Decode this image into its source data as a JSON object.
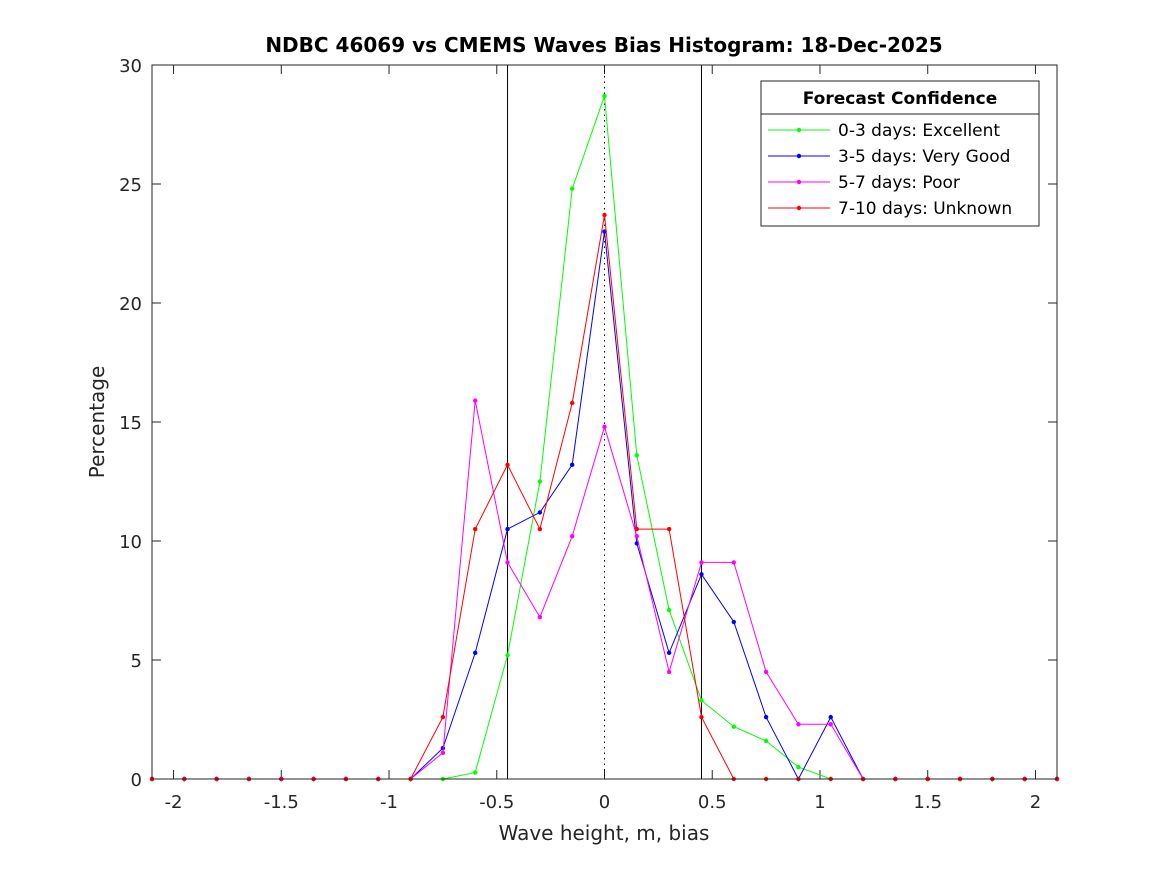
{
  "chart_data": {
    "type": "line",
    "title": "NDBC 46069 vs CMEMS Waves Bias Histogram: 18-Dec-2025",
    "xlabel": "Wave height, m, bias",
    "ylabel": "Percentage",
    "xlim": [
      -2.1,
      2.1
    ],
    "ylim": [
      0,
      30
    ],
    "xticks": [
      -2,
      -1.5,
      -1,
      -0.5,
      0,
      0.5,
      1,
      1.5,
      2
    ],
    "xtick_labels": [
      "-2",
      "-1.5",
      "-1",
      "-0.5",
      "0",
      "0.5",
      "1",
      "1.5",
      "2"
    ],
    "yticks": [
      0,
      5,
      10,
      15,
      20,
      25,
      30
    ],
    "ytick_labels": [
      "0",
      "5",
      "10",
      "15",
      "20",
      "25",
      "30"
    ],
    "grid": false,
    "vertical_lines": [
      {
        "x": -0.45,
        "style": "solid",
        "color": "#000000"
      },
      {
        "x": 0,
        "style": "dotted",
        "color": "#000000"
      },
      {
        "x": 0.45,
        "style": "solid",
        "color": "#000000"
      }
    ],
    "legend": {
      "title": "Forecast Confidence",
      "position": "top-right"
    },
    "x": [
      -2.1,
      -1.95,
      -1.8,
      -1.65,
      -1.5,
      -1.35,
      -1.2,
      -1.05,
      -0.9,
      -0.75,
      -0.6,
      -0.45,
      -0.3,
      -0.15,
      0,
      0.15,
      0.3,
      0.45,
      0.6,
      0.75,
      0.9,
      1.05,
      1.2,
      1.35,
      1.5,
      1.65,
      1.8,
      1.95,
      2.1
    ],
    "series": [
      {
        "name": "0-3 days: Excellent",
        "color": "#00ff00",
        "values": [
          0,
          0,
          0,
          0,
          0,
          0,
          0,
          0,
          0,
          0,
          0.27,
          5.2,
          12.5,
          24.8,
          28.7,
          13.6,
          7.1,
          3.3,
          2.2,
          1.6,
          0.5,
          0,
          0,
          0,
          0,
          0,
          0,
          0,
          0
        ]
      },
      {
        "name": "3-5 days: Very Good",
        "color": "#0000ff",
        "values": [
          0,
          0,
          0,
          0,
          0,
          0,
          0,
          0,
          0,
          1.3,
          5.3,
          10.5,
          11.2,
          13.2,
          23.0,
          9.9,
          5.3,
          8.6,
          6.6,
          2.6,
          0,
          2.6,
          0,
          0,
          0,
          0,
          0,
          0,
          0
        ]
      },
      {
        "name": "5-7 days: Poor",
        "color": "#ff00ff",
        "values": [
          0,
          0,
          0,
          0,
          0,
          0,
          0,
          0,
          0,
          1.1,
          15.9,
          9.1,
          6.8,
          10.2,
          14.8,
          10.2,
          4.5,
          9.1,
          9.1,
          4.5,
          2.3,
          2.3,
          0,
          0,
          0,
          0,
          0,
          0,
          0
        ]
      },
      {
        "name": "7-10 days: Unknown",
        "color": "#ff0000",
        "values": [
          0,
          0,
          0,
          0,
          0,
          0,
          0,
          0,
          0,
          2.6,
          10.5,
          13.2,
          10.5,
          15.8,
          23.7,
          10.5,
          10.5,
          2.6,
          0,
          0,
          0,
          0,
          0,
          0,
          0,
          0,
          0,
          0,
          0
        ]
      }
    ]
  }
}
